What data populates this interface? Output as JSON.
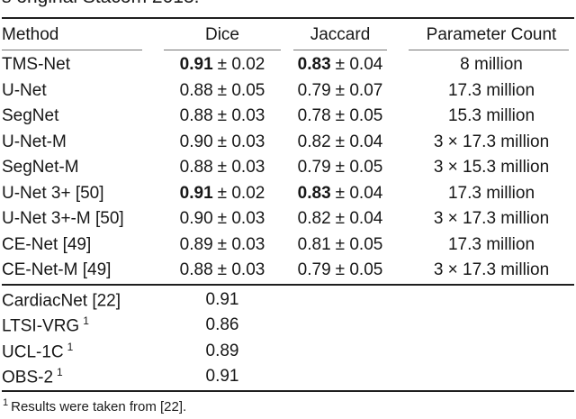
{
  "page": {
    "caption_fragment": "s original Stacom 2013."
  },
  "table": {
    "columns": [
      "Method",
      "Dice",
      "Jaccard",
      "Parameter Count"
    ],
    "rows_main": [
      {
        "method": "TMS-Net",
        "dice_mean": "0.91",
        "dice_bold": true,
        "dice_pm": "± 0.02",
        "jaccard_mean": "0.83",
        "jaccard_bold": true,
        "jaccard_pm": "± 0.04",
        "params": "8 million"
      },
      {
        "method": "U-Net",
        "dice_mean": "0.88",
        "dice_bold": false,
        "dice_pm": "± 0.05",
        "jaccard_mean": "0.79",
        "jaccard_bold": false,
        "jaccard_pm": "± 0.07",
        "params": "17.3 million"
      },
      {
        "method": "SegNet",
        "dice_mean": "0.88",
        "dice_bold": false,
        "dice_pm": "± 0.03",
        "jaccard_mean": "0.78",
        "jaccard_bold": false,
        "jaccard_pm": "± 0.05",
        "params": "15.3 million"
      },
      {
        "method": "U-Net-M",
        "dice_mean": "0.90",
        "dice_bold": false,
        "dice_pm": "± 0.03",
        "jaccard_mean": "0.82",
        "jaccard_bold": false,
        "jaccard_pm": "± 0.04",
        "params": "3 × 17.3 million"
      },
      {
        "method": "SegNet-M",
        "dice_mean": "0.88",
        "dice_bold": false,
        "dice_pm": "± 0.03",
        "jaccard_mean": "0.79",
        "jaccard_bold": false,
        "jaccard_pm": "± 0.05",
        "params": "3 × 15.3 million"
      },
      {
        "method": "U-Net 3+ [50]",
        "dice_mean": "0.91",
        "dice_bold": true,
        "dice_pm": "± 0.02",
        "jaccard_mean": "0.83",
        "jaccard_bold": true,
        "jaccard_pm": "± 0.04",
        "params": "17.3 million"
      },
      {
        "method": "U-Net 3+-M [50]",
        "dice_mean": "0.90",
        "dice_bold": false,
        "dice_pm": "± 0.03",
        "jaccard_mean": "0.82",
        "jaccard_bold": false,
        "jaccard_pm": "± 0.04",
        "params": "3 × 17.3 million"
      },
      {
        "method": "CE-Net [49]",
        "dice_mean": "0.89",
        "dice_bold": false,
        "dice_pm": "± 0.03",
        "jaccard_mean": "0.81",
        "jaccard_bold": false,
        "jaccard_pm": "± 0.05",
        "params": "17.3 million"
      },
      {
        "method": "CE-Net-M [49]",
        "dice_mean": "0.88",
        "dice_bold": false,
        "dice_pm": "± 0.03",
        "jaccard_mean": "0.79",
        "jaccard_bold": false,
        "jaccard_pm": "± 0.05",
        "params": "3 × 17.3 million"
      }
    ],
    "rows_baseline": [
      {
        "method": "CardiacNet [22]",
        "method_sup": "",
        "dice": "0.91"
      },
      {
        "method": "LTSI-VRG",
        "method_sup": "1",
        "dice": "0.86"
      },
      {
        "method": "UCL-1C",
        "method_sup": "1",
        "dice": "0.89"
      },
      {
        "method": "OBS-2",
        "method_sup": "1",
        "dice": "0.91"
      }
    ]
  },
  "footnote": {
    "marker": "1",
    "text": "Results were taken from [22]."
  }
}
